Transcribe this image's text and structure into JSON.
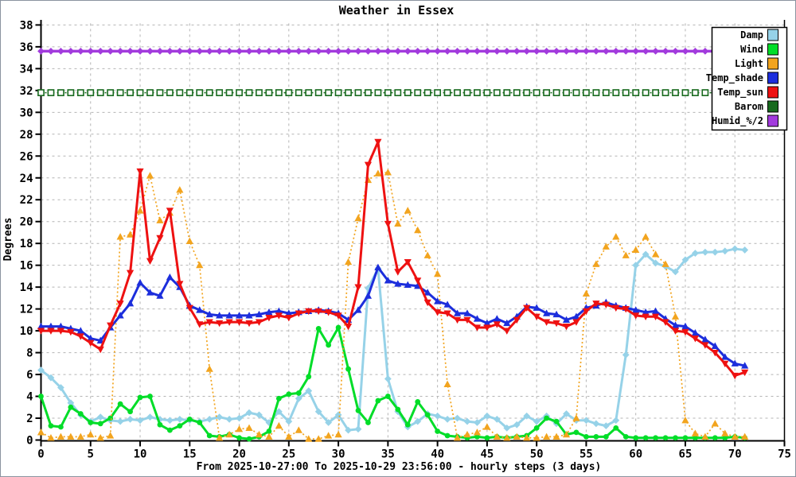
{
  "title": "Weather in Essex",
  "ylabel": "Degrees",
  "xlabel": "From 2025-10-27:00 To 2025-10-29 23:56:00 - hourly steps (3 days)",
  "chart_data": {
    "type": "line",
    "xlim": [
      0,
      75
    ],
    "ylim": [
      0,
      38
    ],
    "x_ticks": [
      0,
      5,
      10,
      15,
      20,
      25,
      30,
      35,
      40,
      45,
      50,
      55,
      60,
      65,
      70,
      75
    ],
    "y_ticks": [
      0,
      2,
      4,
      6,
      8,
      10,
      12,
      14,
      16,
      18,
      20,
      22,
      24,
      26,
      28,
      30,
      32,
      34,
      36,
      38
    ],
    "grid": true,
    "legend_position": "top-right",
    "x_unit": "hours",
    "x_start": 0,
    "x_step": 1,
    "series": [
      {
        "name": "Damp",
        "color": "#96d2e8",
        "marker": "diamond",
        "line": "solid",
        "width": 3,
        "values": [
          6.4,
          5.7,
          4.8,
          3.4,
          2.3,
          1.7,
          2.1,
          1.8,
          1.7,
          1.9,
          1.8,
          2.1,
          1.9,
          1.8,
          1.9,
          1.8,
          1.7,
          1.9,
          2.1,
          1.9,
          2.0,
          2.5,
          2.3,
          1.6,
          2.6,
          1.7,
          3.8,
          4.5,
          2.6,
          1.6,
          2.3,
          0.9,
          1.0,
          13.9,
          15.7,
          5.6,
          2.6,
          1.2,
          1.7,
          2.4,
          2.2,
          1.9,
          2.0,
          1.7,
          1.6,
          2.2,
          1.9,
          1.1,
          1.4,
          2.2,
          1.7,
          2.2,
          1.5,
          2.4,
          1.8,
          1.8,
          1.5,
          1.3,
          1.8,
          7.8,
          16.0,
          17.0,
          16.2,
          15.9,
          15.4,
          16.5,
          17.1,
          17.2,
          17.2,
          17.3,
          17.5,
          17.4
        ]
      },
      {
        "name": "Wind",
        "color": "#00dd28",
        "marker": "circle",
        "line": "solid",
        "width": 3,
        "values": [
          4.0,
          1.3,
          1.2,
          3.0,
          2.4,
          1.6,
          1.5,
          2.0,
          3.3,
          2.6,
          3.9,
          4.0,
          1.4,
          0.9,
          1.3,
          1.9,
          1.6,
          0.4,
          0.3,
          0.5,
          0.2,
          0.1,
          0.3,
          0.8,
          3.8,
          4.2,
          4.3,
          5.8,
          10.2,
          8.7,
          10.3,
          6.5,
          2.7,
          1.6,
          3.6,
          4.0,
          2.8,
          1.4,
          3.5,
          2.3,
          0.8,
          0.4,
          0.3,
          0.2,
          0.3,
          0.2,
          0.3,
          0.2,
          0.3,
          0.4,
          1.1,
          2.0,
          1.7,
          0.5,
          0.7,
          0.3,
          0.3,
          0.3,
          1.1,
          0.3,
          0.2,
          0.2,
          0.2,
          0.2,
          0.2,
          0.2,
          0.2,
          0.2,
          0.2,
          0.2,
          0.3,
          0.2
        ]
      },
      {
        "name": "Light",
        "color": "#f2a41e",
        "marker": "triangle",
        "line": "dotted",
        "width": 1.7,
        "values": [
          0.7,
          0.2,
          0.3,
          0.3,
          0.3,
          0.5,
          0.2,
          0.4,
          18.6,
          18.8,
          21.0,
          24.2,
          20.1,
          20.8,
          22.9,
          18.2,
          16.0,
          6.5,
          0.2,
          0.5,
          1.0,
          1.1,
          0.5,
          0.3,
          1.3,
          0.3,
          0.9,
          0.1,
          0.1,
          0.4,
          0.5,
          16.3,
          20.3,
          23.8,
          24.4,
          24.5,
          19.8,
          21.0,
          19.2,
          16.9,
          15.2,
          5.1,
          0.2,
          0.5,
          0.7,
          1.2,
          0.3,
          0.2,
          0.3,
          0.2,
          0.2,
          0.3,
          0.3,
          0.5,
          2.0,
          13.4,
          16.1,
          17.7,
          18.6,
          16.9,
          17.4,
          18.6,
          17.0,
          16.1,
          11.3,
          1.8,
          0.6,
          0.3,
          1.5,
          0.6,
          0.3,
          0.3
        ]
      },
      {
        "name": "Temp_shade",
        "color": "#1c2edc",
        "marker": "triangle",
        "line": "solid",
        "width": 3,
        "values": [
          10.4,
          10.4,
          10.4,
          10.2,
          10.0,
          9.3,
          9.1,
          10.3,
          11.4,
          12.5,
          14.4,
          13.5,
          13.2,
          14.9,
          14.0,
          12.3,
          11.9,
          11.5,
          11.4,
          11.4,
          11.4,
          11.4,
          11.5,
          11.7,
          11.8,
          11.6,
          11.7,
          11.8,
          11.9,
          11.8,
          11.6,
          11.0,
          11.9,
          13.2,
          15.8,
          14.6,
          14.3,
          14.2,
          14.1,
          13.5,
          12.7,
          12.4,
          11.6,
          11.6,
          11.1,
          10.7,
          11.1,
          10.7,
          11.3,
          12.2,
          12.1,
          11.6,
          11.5,
          11.0,
          11.3,
          12.1,
          12.3,
          12.6,
          12.3,
          12.1,
          11.9,
          11.7,
          11.8,
          11.1,
          10.5,
          10.4,
          9.8,
          9.2,
          8.6,
          7.6,
          7.0,
          6.8
        ]
      },
      {
        "name": "Temp_sun",
        "color": "#ee1111",
        "marker": "triangle-down",
        "line": "solid",
        "width": 3,
        "values": [
          10.0,
          10.0,
          10.0,
          9.9,
          9.5,
          8.9,
          8.3,
          10.5,
          12.5,
          15.3,
          24.6,
          16.4,
          18.5,
          21.0,
          14.3,
          12.1,
          10.6,
          10.8,
          10.7,
          10.8,
          10.8,
          10.7,
          10.8,
          11.2,
          11.4,
          11.2,
          11.6,
          11.8,
          11.8,
          11.7,
          11.4,
          10.4,
          14.0,
          25.2,
          27.3,
          19.8,
          15.4,
          16.3,
          14.6,
          12.6,
          11.7,
          11.6,
          11.0,
          11.0,
          10.3,
          10.3,
          10.6,
          10.0,
          11.0,
          12.1,
          11.3,
          10.8,
          10.7,
          10.4,
          10.8,
          11.8,
          12.5,
          12.4,
          12.1,
          12.0,
          11.4,
          11.3,
          11.3,
          10.8,
          10.0,
          9.9,
          9.3,
          8.7,
          8.0,
          7.0,
          5.9,
          6.2
        ]
      },
      {
        "name": "Barom",
        "color": "#186a1e",
        "marker": "square-open",
        "line": "dotted",
        "width": 1.5,
        "constant": 31.8,
        "points": 72
      },
      {
        "name": "Humid_%/2",
        "color": "#a23bdd",
        "marker": "diamond",
        "line": "solid",
        "width": 3.5,
        "constant": 35.6,
        "points": 72
      }
    ]
  }
}
